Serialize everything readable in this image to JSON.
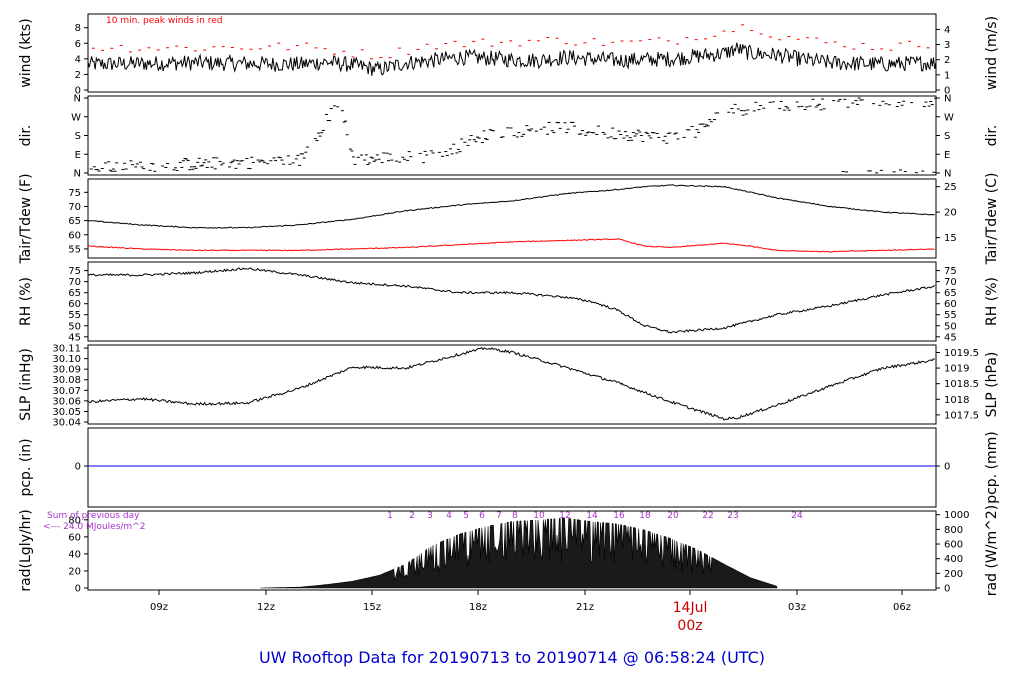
{
  "footer_title": "UW Rooftop Data for 20190713  to  20190714 @ 06:58:24  (UTC)",
  "wind_note": "10 min. peak winds in red",
  "rad_note_line1": "Sum of previous day",
  "rad_note_line2": "<--- 24.0 MJoules/m^2",
  "date_marker_day": "14Jul",
  "date_marker_time": "00z",
  "colors": {
    "peak": "#ff0000",
    "dew": "#ff0000",
    "precip": "#0000ff",
    "footer": "#0000cc",
    "hour_markers": "#aa33cc"
  },
  "chart_data": [
    {
      "type": "line",
      "panel": "wind",
      "ylabel": "wind (kts)",
      "ylabel_right": "wind (m/s)",
      "ylim": [
        0,
        9.5
      ],
      "yticks": [
        0,
        2,
        4,
        6,
        8
      ],
      "yticks_right": [
        0,
        1,
        2,
        3,
        4
      ],
      "series": [
        {
          "name": "wind",
          "x_hours": [
            0,
            2,
            4,
            6,
            8,
            9,
            10,
            11,
            12,
            13,
            14,
            15,
            16,
            17,
            18,
            20,
            22,
            24,
            24.5,
            25,
            26,
            27,
            28,
            30,
            32
          ],
          "values": [
            3.3,
            3.4,
            3.5,
            3.4,
            3.3,
            3.6,
            3.2,
            2.6,
            3.5,
            3.8,
            4.2,
            4.1,
            3.9,
            3.8,
            4.2,
            3.8,
            4.0,
            4.7,
            5.3,
            4.7,
            4.5,
            3.9,
            3.5,
            3.3,
            3.5
          ]
        },
        {
          "name": "10 min. peak winds in red",
          "x_hours": [
            0,
            4,
            8,
            11,
            13,
            16,
            18,
            20,
            22,
            24,
            25,
            26,
            28,
            30,
            32
          ],
          "values": [
            5.5,
            5.4,
            5.6,
            4.4,
            5.8,
            6.2,
            6.4,
            6.0,
            6.3,
            7.6,
            8.3,
            7.0,
            6.0,
            5.5,
            6.0
          ]
        }
      ]
    },
    {
      "type": "scatter",
      "panel": "dir",
      "ylabel": "dir.",
      "ylabel_right": "dir.",
      "ylim": [
        0,
        360
      ],
      "yticks": [
        "N",
        "E",
        "S",
        "W",
        "N"
      ],
      "series": [
        {
          "name": "direction",
          "x_hours": [
            0,
            3,
            6,
            8,
            9.5,
            10,
            11,
            13,
            14,
            15,
            16,
            17,
            18,
            19,
            20,
            21,
            22,
            23,
            24,
            26,
            28,
            30,
            32
          ],
          "values": [
            20,
            40,
            50,
            60,
            350,
            60,
            70,
            80,
            130,
            180,
            200,
            210,
            220,
            200,
            190,
            180,
            170,
            200,
            300,
            320,
            335,
            345,
            350
          ]
        }
      ]
    },
    {
      "type": "line",
      "panel": "temp",
      "ylabel": "Tair/Tdew (F)",
      "ylabel_right": "Tair/Tdew (C)",
      "ylim": [
        52.5,
        79
      ],
      "yticks": [
        55,
        60,
        65,
        70,
        75
      ],
      "yticks_right": [
        15,
        20,
        25
      ],
      "series": [
        {
          "name": "Tair",
          "x_hours": [
            0,
            2,
            4,
            6,
            8,
            10,
            12,
            14,
            16,
            18,
            20,
            21,
            22,
            24,
            26,
            28,
            30,
            32
          ],
          "values": [
            65,
            63.5,
            62.5,
            62.5,
            63.5,
            65.5,
            68.5,
            70.5,
            72,
            74.5,
            76,
            77,
            77.5,
            77,
            73,
            70,
            68,
            67
          ]
        },
        {
          "name": "Tdew",
          "x_hours": [
            0,
            2,
            4,
            6,
            8,
            10,
            12,
            14,
            16,
            18,
            20,
            21,
            22,
            24,
            25,
            26,
            28,
            30,
            32
          ],
          "values": [
            56,
            55,
            54.5,
            54.5,
            54.5,
            55,
            55.5,
            56.5,
            57.5,
            58,
            58.5,
            56,
            55.5,
            57,
            56,
            54.5,
            54,
            54.5,
            55
          ]
        }
      ]
    },
    {
      "type": "line",
      "panel": "rh",
      "ylabel": "RH (%)",
      "ylabel_right": "RH (%)",
      "ylim": [
        44,
        78
      ],
      "yticks": [
        45,
        50,
        55,
        60,
        65,
        70,
        75
      ],
      "series": [
        {
          "name": "RH",
          "x_hours": [
            0,
            2,
            4,
            6,
            8,
            10,
            12,
            14,
            16,
            18,
            19,
            20,
            21,
            22,
            23,
            24,
            26,
            28,
            30,
            32
          ],
          "values": [
            73,
            73,
            74,
            76,
            73,
            69.5,
            68,
            65,
            65,
            63,
            61,
            57,
            50,
            47,
            48,
            49,
            55,
            59,
            64,
            68
          ]
        }
      ]
    },
    {
      "type": "line",
      "panel": "slp",
      "ylabel": "SLP (inHg)",
      "ylabel_right": "SLP (hPa)",
      "ylim": [
        30.04,
        30.111
      ],
      "yticks": [
        30.04,
        30.05,
        30.06,
        30.07,
        30.08,
        30.09,
        30.1,
        30.11
      ],
      "yticks_right": [
        "1017.5",
        "1018",
        "1018.5",
        "1019",
        "1019.5"
      ],
      "series": [
        {
          "name": "SLP",
          "x_hours": [
            0,
            2,
            4,
            6,
            8,
            10,
            12,
            14,
            15,
            16,
            18,
            20,
            22,
            24,
            24.5,
            26,
            28,
            30,
            32
          ],
          "values": [
            30.059,
            30.062,
            30.057,
            30.058,
            30.072,
            30.092,
            30.091,
            30.104,
            30.11,
            30.106,
            30.092,
            30.077,
            30.059,
            30.043,
            30.044,
            30.056,
            30.074,
            30.091,
            30.099
          ]
        }
      ]
    },
    {
      "type": "line",
      "panel": "pcp",
      "ylabel": "pcp. (in)",
      "ylabel_right": "pcp. (mm)",
      "yticks": [
        0
      ],
      "yticks_right": [
        0
      ],
      "series": [
        {
          "name": "pcp",
          "x_hours": [
            0,
            32
          ],
          "values": [
            0,
            0
          ]
        }
      ]
    },
    {
      "type": "area",
      "panel": "rad",
      "ylabel": "rad(Lgly/hr)",
      "ylabel_right": "rad (W/m^2)",
      "ylim": [
        0,
        88
      ],
      "yticks": [
        0,
        20,
        40,
        60,
        80
      ],
      "yticks_right": [
        0,
        200,
        400,
        600,
        800,
        1000
      ],
      "series": [
        {
          "name": "radiation",
          "x_hours": [
            6.5,
            8,
            9,
            10,
            11,
            12,
            13,
            14,
            15,
            16,
            17,
            18,
            19,
            20,
            21,
            22,
            23,
            24,
            25,
            26
          ],
          "values": [
            0,
            1,
            4,
            8,
            15,
            28,
            50,
            63,
            72,
            78,
            80,
            82,
            78,
            75,
            68,
            58,
            45,
            28,
            12,
            2
          ]
        }
      ],
      "hour_markers": [
        "1",
        "2",
        "3",
        "4",
        "5",
        "6",
        "7",
        "8",
        "10",
        "12",
        "14",
        "16",
        "18",
        "20",
        "22",
        "23",
        "24"
      ]
    }
  ],
  "xaxis": {
    "tick_labels": [
      "09z",
      "12z",
      "15z",
      "18z",
      "21z",
      "03z",
      "06z"
    ]
  }
}
